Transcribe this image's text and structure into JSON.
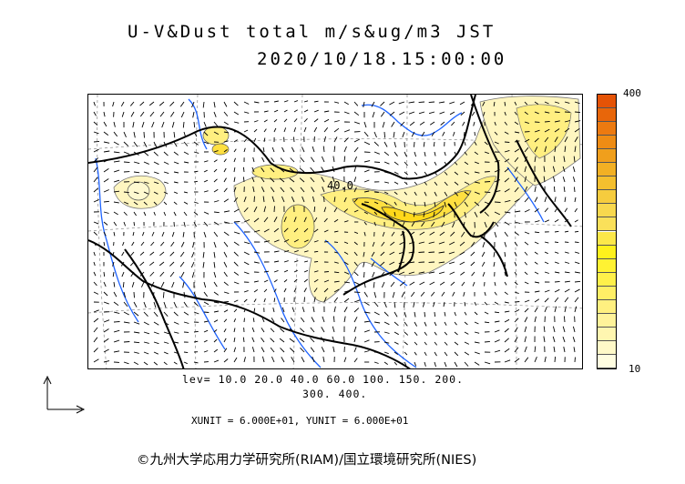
{
  "title": {
    "line1": "U-V&Dust total m/s&ug/m3 JST",
    "line2": "2020/10/18.15:00:00"
  },
  "colorbar": {
    "max_label": "400",
    "min_label": "10",
    "colors": [
      "#fffde0",
      "#fff9c8",
      "#fff6b0",
      "#fff39a",
      "#fff080",
      "#ffef66",
      "#fff04a",
      "#fff233",
      "#fff11c",
      "#fce84a",
      "#fae05a",
      "#f8d84e",
      "#f6cc3e",
      "#f4bf2e",
      "#f2b024",
      "#f09f1c",
      "#ee8c14",
      "#ec7a10",
      "#e8660a",
      "#e55306"
    ]
  },
  "map": {
    "contour_label": "40.0",
    "dust_fill": "#fff3b0",
    "dust_core": "#ffe24a",
    "coast_color": "#1e63ff",
    "border_color": "#000000"
  },
  "levels": {
    "line1": "lev= 10.0 20.0 40.0 60.0 100. 150. 200.",
    "line2": "300. 400."
  },
  "units": "XUNIT = 6.000E+01, YUNIT = 6.000E+01",
  "copyright": "©九州大学応用力学研究所(RIAM)/国立環境研究所(NIES)"
}
